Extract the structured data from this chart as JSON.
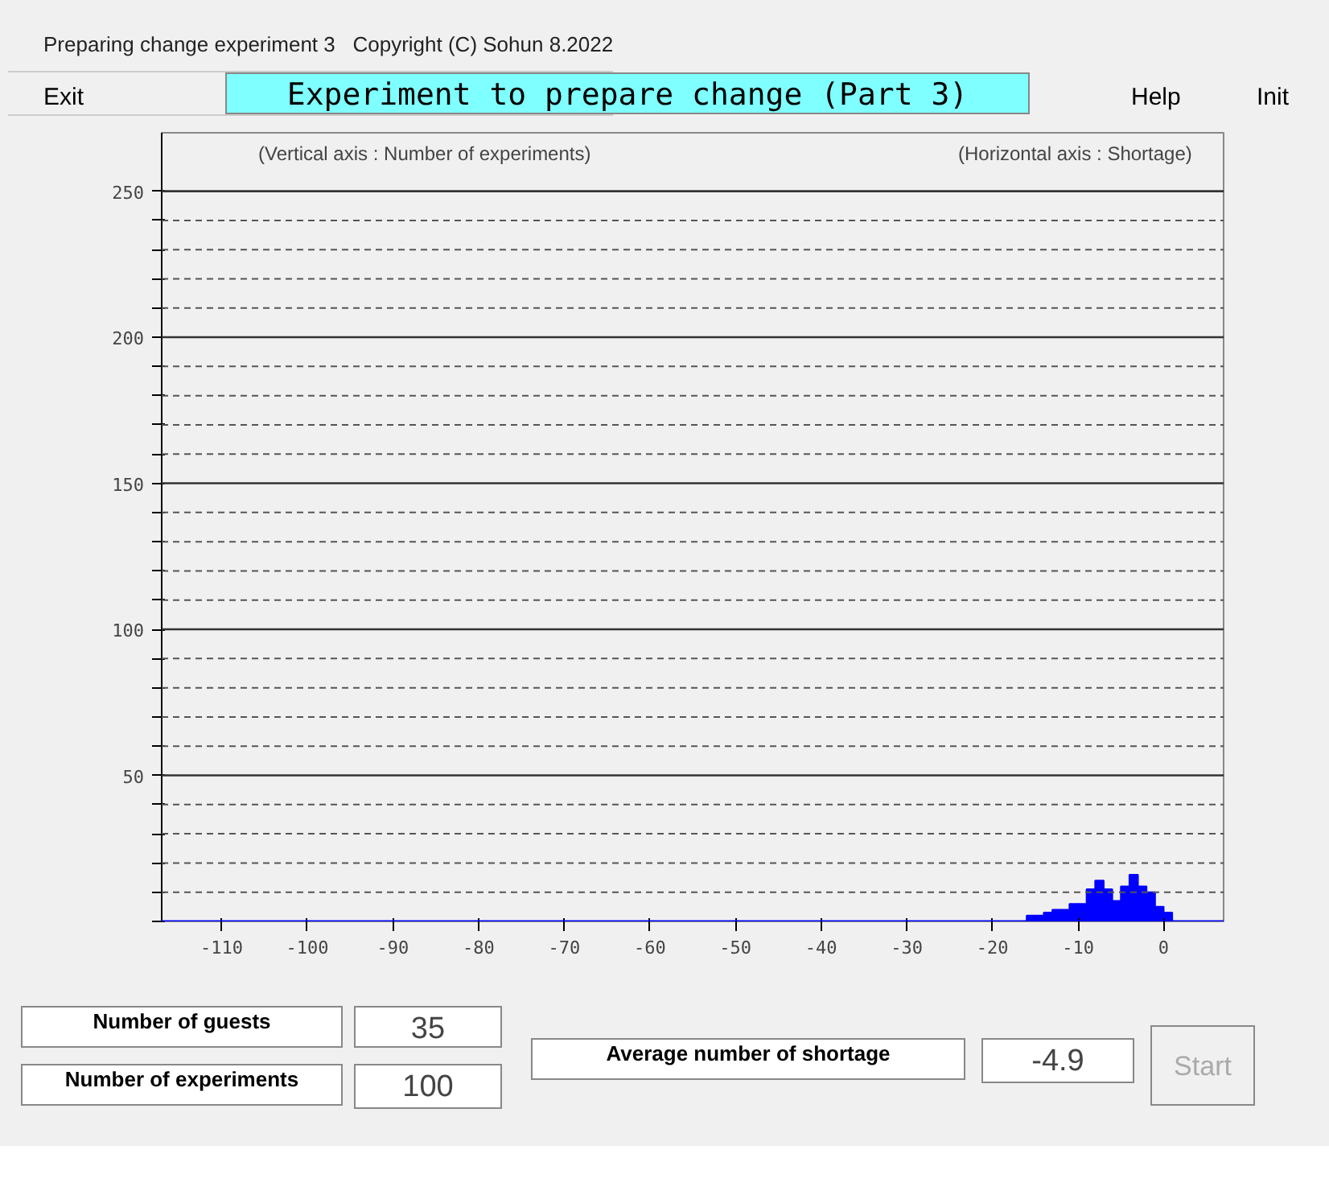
{
  "chart_data": {
    "type": "histogram",
    "subtitle": "Preparing change experiment 3   Copyright (C) Sohun 8.2022",
    "title": "Experiment to prepare change (Part 3)",
    "ylabel": "(Vertical axis : Number of experiments)",
    "xlabel": "(Horizontal axis : Shortage)",
    "bins": [
      -16,
      -15,
      -14,
      -13,
      -12,
      -11,
      -10,
      -9,
      -8,
      -7,
      -6,
      -5,
      -4,
      -3,
      -2,
      -1,
      0,
      1
    ],
    "values": [
      2,
      2,
      3,
      4,
      4,
      6,
      6,
      11,
      14,
      11,
      7,
      12,
      16,
      12,
      10,
      5,
      3
    ],
    "color": "#0000ff",
    "xlim": [
      -117,
      7
    ],
    "ylim": [
      0,
      270
    ],
    "xticks": [
      -110,
      -100,
      -90,
      -80,
      -70,
      -60,
      -50,
      -40,
      -30,
      -20,
      -10,
      0
    ],
    "yticks": [
      {
        "value": 0,
        "label": null
      },
      {
        "value": 10,
        "label": null
      },
      {
        "value": 20,
        "label": null
      },
      {
        "value": 30,
        "label": null
      },
      {
        "value": 40,
        "label": null
      },
      50,
      {
        "value": 60,
        "label": null
      },
      {
        "value": 70,
        "label": null
      },
      {
        "value": 80,
        "label": null
      },
      {
        "value": 90,
        "label": null
      },
      100,
      {
        "value": 110,
        "label": null
      },
      {
        "value": 120,
        "label": null
      },
      {
        "value": 130,
        "label": null
      },
      {
        "value": 140,
        "label": null
      },
      150,
      {
        "value": 160,
        "label": null
      },
      {
        "value": 170,
        "label": null
      },
      {
        "value": 180,
        "label": null
      },
      {
        "value": 190,
        "label": null
      },
      200,
      {
        "value": 210,
        "label": null
      },
      {
        "value": 220,
        "label": null
      },
      {
        "value": 230,
        "label": null
      },
      {
        "value": 240,
        "label": null
      },
      250
    ],
    "grid": "y",
    "annotations": [
      "Exit",
      "Help",
      "Init",
      "Number of guests",
      "35",
      "Number of experiments",
      "100",
      "Average number of shortage",
      "-4.9",
      "Start"
    ]
  }
}
